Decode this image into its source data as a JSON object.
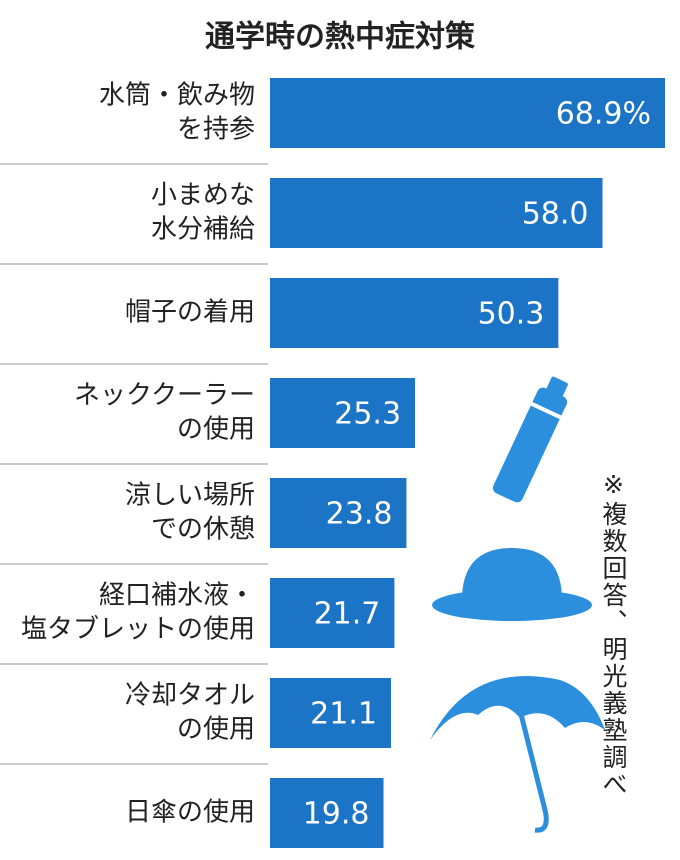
{
  "chart_data": {
    "type": "bar",
    "orientation": "horizontal",
    "title": "通学時の熱中症対策",
    "categories": [
      [
        "水筒・飲み物",
        "を持参"
      ],
      [
        "小まめな",
        "水分補給"
      ],
      [
        "帽子の着用"
      ],
      [
        "ネッククーラー",
        "の使用"
      ],
      [
        "涼しい場所",
        "での休憩"
      ],
      [
        "経口補水液・",
        "塩タブレットの使用"
      ],
      [
        "冷却タオル",
        "の使用"
      ],
      [
        "日傘の使用"
      ]
    ],
    "values": [
      68.9,
      58.0,
      50.3,
      25.3,
      23.8,
      21.7,
      21.1,
      19.8
    ],
    "value_labels": [
      "68.9%",
      "58.0",
      "50.3",
      "25.3",
      "23.8",
      "21.7",
      "21.1",
      "19.8"
    ],
    "color": "#1c74c6",
    "note": "※複数回答、明光義塾調べ"
  }
}
